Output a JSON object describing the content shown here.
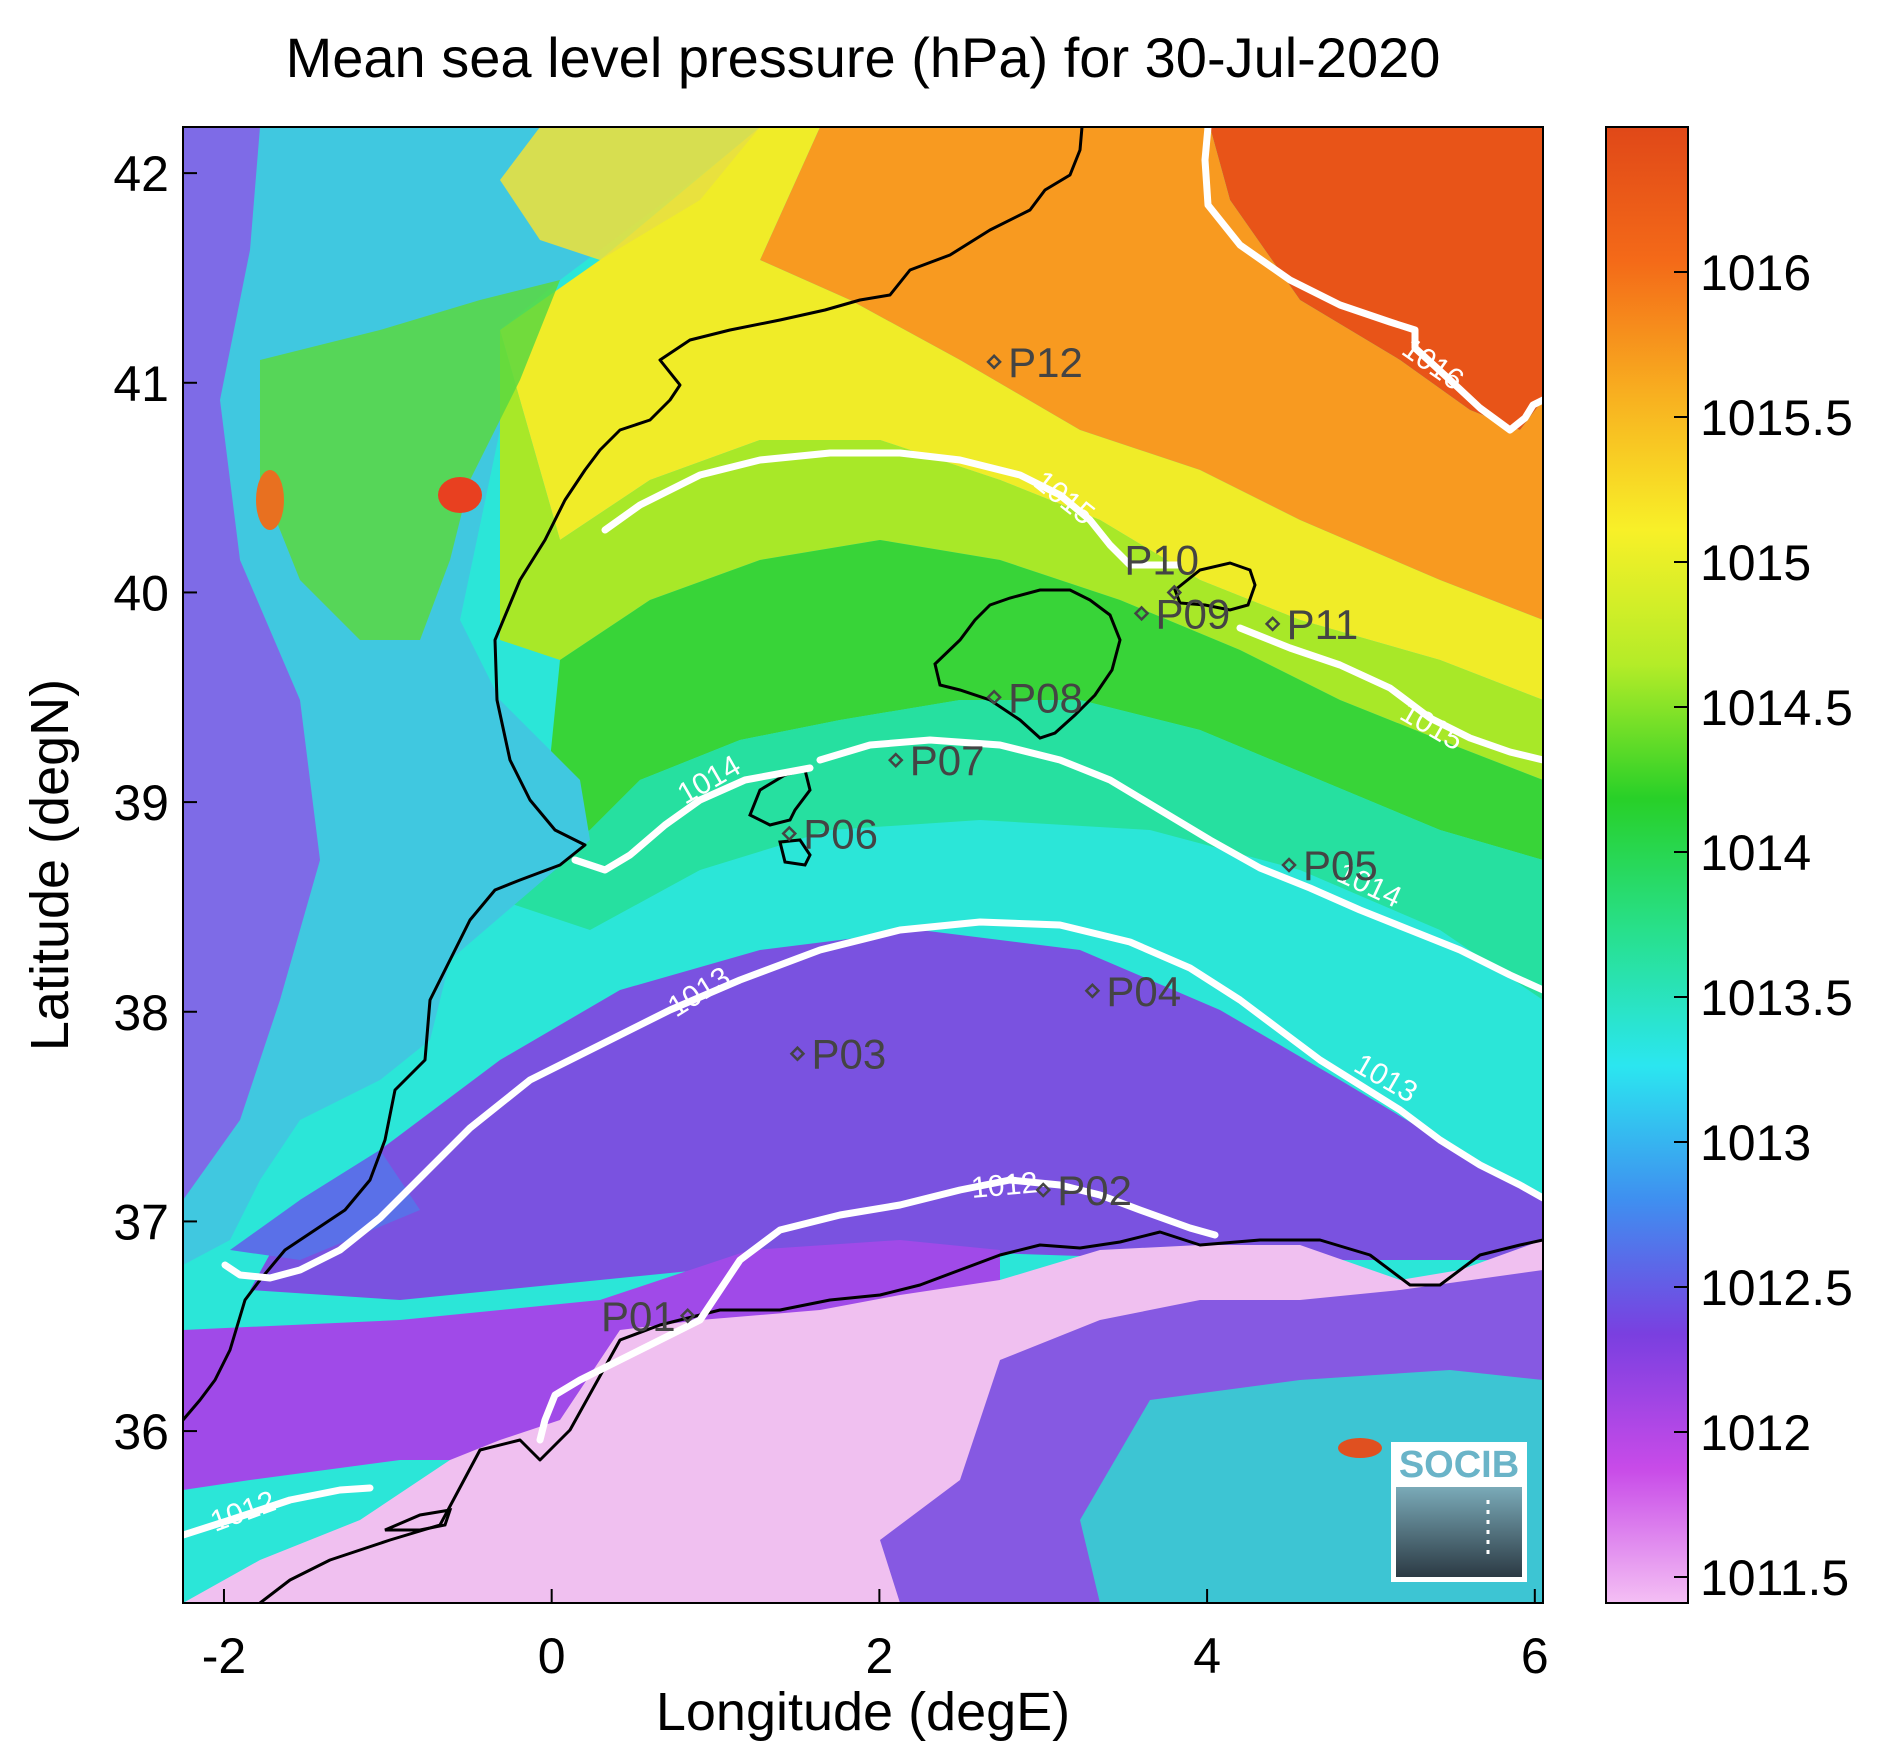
{
  "title": "Mean sea level pressure (hPa) for 30-Jul-2020",
  "xlabel": "Longitude (degE)",
  "ylabel": "Latitude (degN)",
  "xticks": [
    "-2",
    "0",
    "2",
    "4",
    "6"
  ],
  "yticks": [
    "42",
    "41",
    "40",
    "39",
    "38",
    "37",
    "36"
  ],
  "colorbar": {
    "ticks": [
      "1016",
      "1015.5",
      "1015",
      "1014.5",
      "1014",
      "1013.5",
      "1013",
      "1012.5",
      "1012",
      "1011.5"
    ],
    "colors": [
      "#f4bff4",
      "#c84be8",
      "#7a3fe0",
      "#3f8ff0",
      "#2be6f0",
      "#28e08c",
      "#28d028",
      "#b4ec28",
      "#f8f028",
      "#f8b020",
      "#f46a18",
      "#e04818"
    ]
  },
  "contours": [
    {
      "level": "1012",
      "color": "#ffffff"
    },
    {
      "level": "1013",
      "color": "#ffffff"
    },
    {
      "level": "1014",
      "color": "#ffffff"
    },
    {
      "level": "1015",
      "color": "#ffffff"
    },
    {
      "level": "1016",
      "color": "#ffffff"
    }
  ],
  "stations": [
    {
      "id": "P01",
      "lon": 0.83,
      "lat": 36.55
    },
    {
      "id": "P02",
      "lon": 3.0,
      "lat": 37.15
    },
    {
      "id": "P03",
      "lon": 1.5,
      "lat": 37.8
    },
    {
      "id": "P04",
      "lon": 3.3,
      "lat": 38.1
    },
    {
      "id": "P05",
      "lon": 4.5,
      "lat": 38.7
    },
    {
      "id": "P06",
      "lon": 1.45,
      "lat": 38.85
    },
    {
      "id": "P07",
      "lon": 2.1,
      "lat": 39.2
    },
    {
      "id": "P08",
      "lon": 2.7,
      "lat": 39.5
    },
    {
      "id": "P09",
      "lon": 3.6,
      "lat": 39.9
    },
    {
      "id": "P10",
      "lon": 3.8,
      "lat": 40.0
    },
    {
      "id": "P11",
      "lon": 4.4,
      "lat": 39.85
    },
    {
      "id": "P12",
      "lon": 2.7,
      "lat": 41.1
    }
  ],
  "logo": "SOCIB"
}
